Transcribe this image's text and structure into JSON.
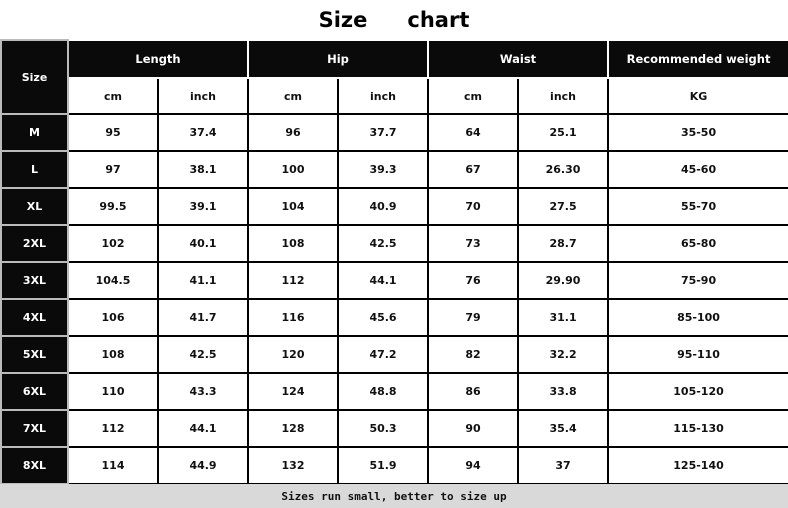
{
  "title": {
    "word1": "Size",
    "word2": "chart"
  },
  "header": {
    "size": "Size",
    "groups": [
      "Length",
      "Hip",
      "Waist",
      "Recommended weight"
    ],
    "units": [
      "cm",
      "inch",
      "cm",
      "inch",
      "cm",
      "inch",
      "KG"
    ]
  },
  "rows": [
    [
      "M",
      "95",
      "37.4",
      "96",
      "37.7",
      "64",
      "25.1",
      "35-50"
    ],
    [
      "L",
      "97",
      "38.1",
      "100",
      "39.3",
      "67",
      "26.30",
      "45-60"
    ],
    [
      "XL",
      "99.5",
      "39.1",
      "104",
      "40.9",
      "70",
      "27.5",
      "55-70"
    ],
    [
      "2XL",
      "102",
      "40.1",
      "108",
      "42.5",
      "73",
      "28.7",
      "65-80"
    ],
    [
      "3XL",
      "104.5",
      "41.1",
      "112",
      "44.1",
      "76",
      "29.90",
      "75-90"
    ],
    [
      "4XL",
      "106",
      "41.7",
      "116",
      "45.6",
      "79",
      "31.1",
      "85-100"
    ],
    [
      "5XL",
      "108",
      "42.5",
      "120",
      "47.2",
      "82",
      "32.2",
      "95-110"
    ],
    [
      "6XL",
      "110",
      "43.3",
      "124",
      "48.8",
      "86",
      "33.8",
      "105-120"
    ],
    [
      "7XL",
      "112",
      "44.1",
      "128",
      "50.3",
      "90",
      "35.4",
      "115-130"
    ],
    [
      "8XL",
      "114",
      "44.9",
      "132",
      "51.9",
      "94",
      "37",
      "125-140"
    ]
  ],
  "footer": "Sizes run small, better to size up",
  "colors": {
    "header_bg": "#0a0a0a",
    "footer_bg": "#d9d9d9"
  }
}
